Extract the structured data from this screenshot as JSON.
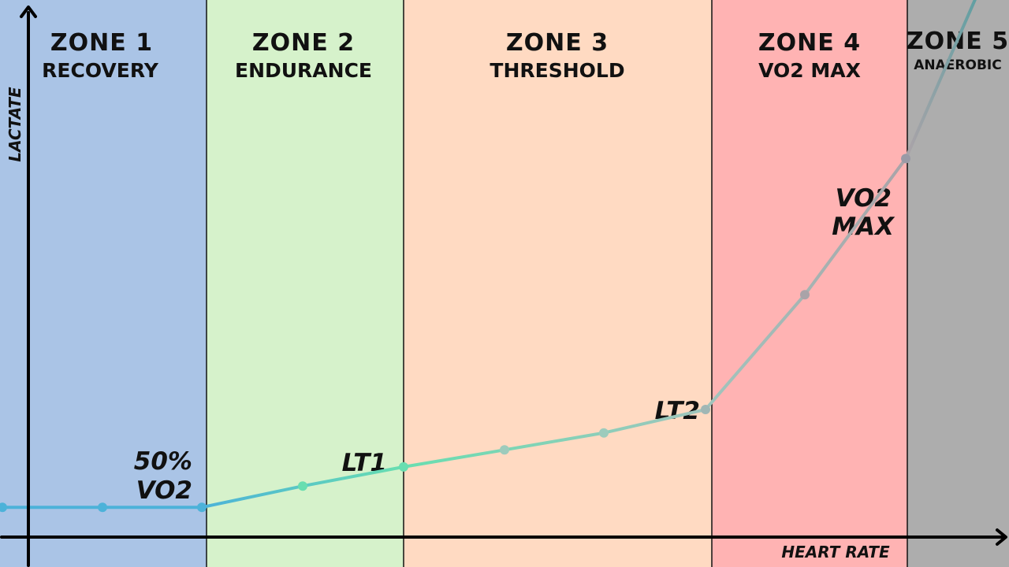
{
  "chart_data": {
    "type": "line",
    "xlabel": "HEART RATE",
    "ylabel": "LACTATE",
    "zones": [
      {
        "title": "ZONE 1",
        "subtitle": "RECOVERY",
        "color": "#aac4e6"
      },
      {
        "title": "ZONE 2",
        "subtitle": "ENDURANCE",
        "color": "#d6f2cb"
      },
      {
        "title": "ZONE 3",
        "subtitle": "THRESHOLD",
        "color": "#ffdac2"
      },
      {
        "title": "ZONE 4",
        "subtitle": "VO2 MAX",
        "color": "#ffb3b3"
      },
      {
        "title": "ZONE 5",
        "subtitle": "ANAEROBIC",
        "color": "#adadad"
      }
    ],
    "annotations": [
      "50%",
      "VO2",
      "LT1",
      "LT2",
      "VO2",
      "MAX"
    ],
    "series": [
      {
        "x": [
          0,
          1,
          2,
          3,
          4,
          5,
          6,
          7,
          8,
          9,
          10
        ],
        "values": [
          0.07,
          0.07,
          0.07,
          0.12,
          0.165,
          0.205,
          0.245,
          0.3,
          0.57,
          0.89,
          1.43
        ],
        "colors": [
          "#4cb2d9",
          "#4cb2d9",
          "#4cb2d9",
          "#68deb0",
          "#68deb0",
          "#9dcbbc",
          "#9dcbbc",
          "#a0b7b5",
          "#aaa3a8",
          "#9a9aa6",
          "#3d9d9f"
        ]
      }
    ],
    "grid": false,
    "legend": "none"
  }
}
